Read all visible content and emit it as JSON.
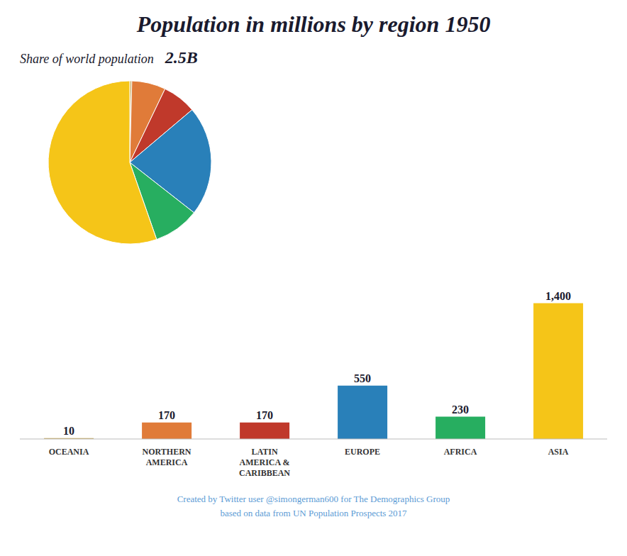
{
  "chart_data": [
    {
      "type": "bar",
      "title": "Population in millions by region 1950",
      "categories": [
        "OCEANIA",
        "NORTHERN\nAMERICA",
        "LATIN\nAMERICA &\nCARIBBEAN",
        "EUROPE",
        "AFRICA",
        "ASIA"
      ],
      "values": [
        10,
        170,
        170,
        550,
        230,
        1400
      ],
      "value_labels": [
        "10",
        "170",
        "170",
        "550",
        "230",
        "1,400"
      ],
      "colors": [
        "#c8a85a",
        "#e07b39",
        "#c0392b",
        "#2980b9",
        "#27ae60",
        "#f5c518"
      ],
      "ylim": [
        0,
        1792
      ],
      "data_labels": true,
      "tick_labels": "x",
      "grid": false,
      "annotations": [
        "Created by Twitter user @simongerman600 for The Demographics Group",
        "based on data from UN Population Prospects 2017"
      ]
    },
    {
      "type": "pie",
      "title": "Share of world population",
      "values": [
        10,
        170,
        170,
        550,
        230,
        1400
      ],
      "colors": [
        "#c8a85a",
        "#e07b39",
        "#c0392b",
        "#2980b9",
        "#27ae60",
        "#f5c518"
      ],
      "annotations": [
        "2.5B"
      ]
    }
  ]
}
